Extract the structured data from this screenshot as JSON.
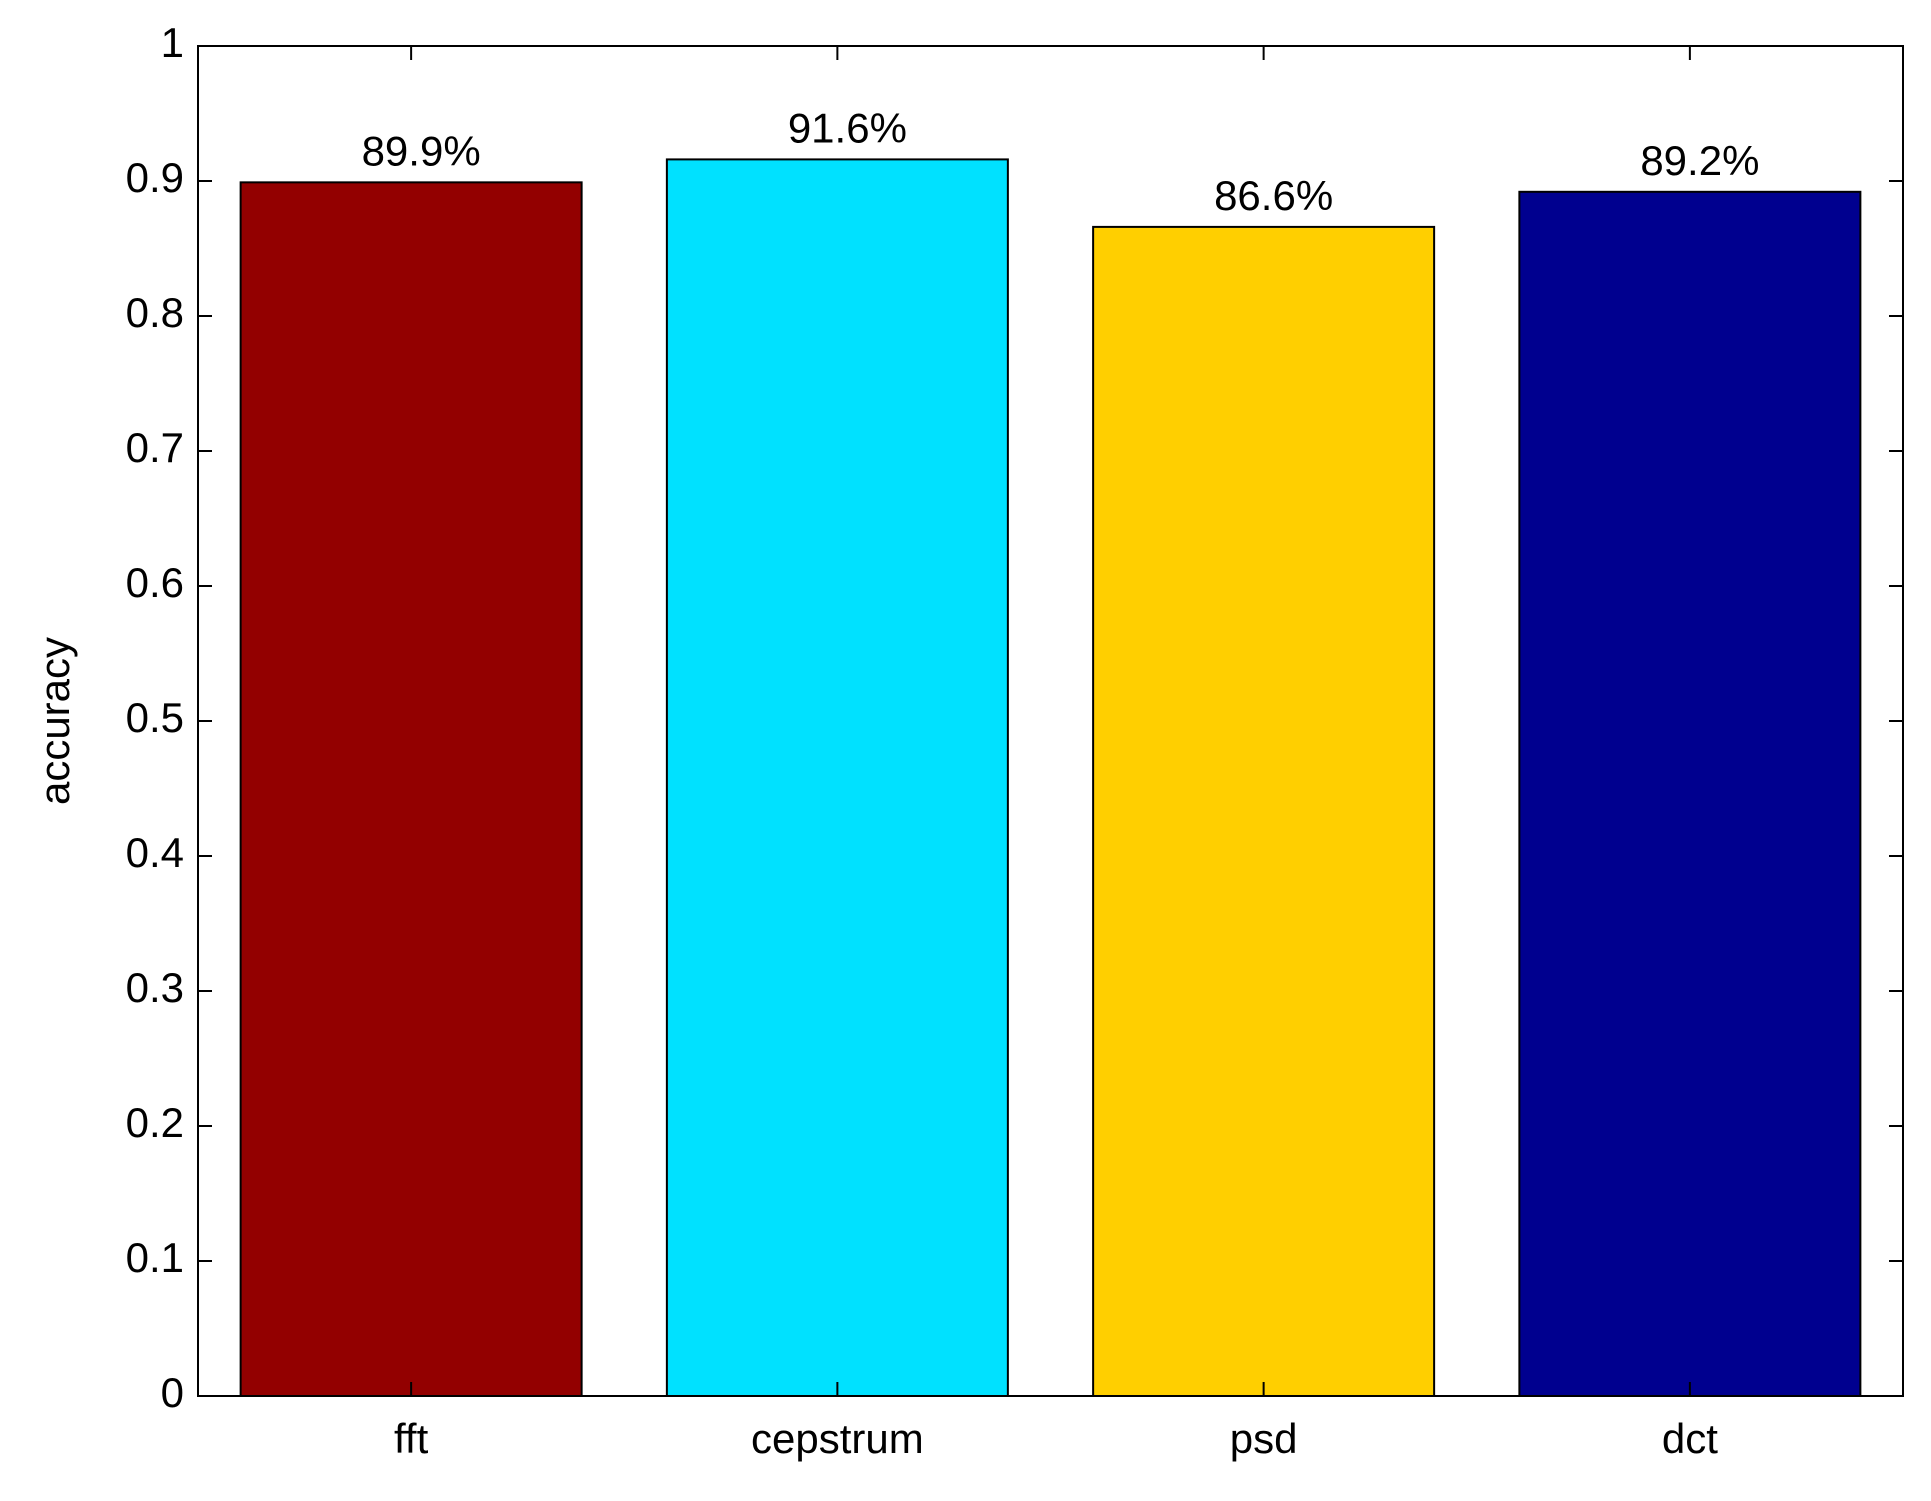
{
  "chart_data": {
    "type": "bar",
    "ylabel": "accuracy",
    "categories": [
      "fft",
      "cepstrum",
      "psd",
      "dct"
    ],
    "values": [
      0.899,
      0.916,
      0.866,
      0.892
    ],
    "value_labels": [
      "89.9%",
      "91.6%",
      "86.6%",
      "89.2%"
    ],
    "colors": [
      "#930000",
      "#00e1ff",
      "#ffcf00",
      "#00008f"
    ],
    "ylim": [
      0,
      1
    ],
    "yticks": [
      0,
      0.1,
      0.2,
      0.3,
      0.4,
      0.5,
      0.6,
      0.7,
      0.8,
      0.9,
      1
    ],
    "grid": false
  }
}
